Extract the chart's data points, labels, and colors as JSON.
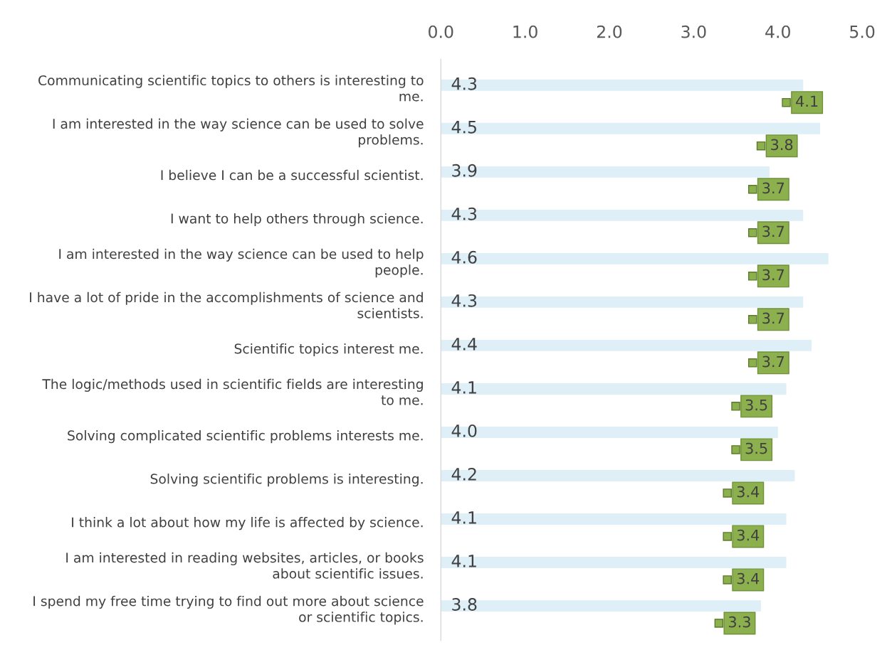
{
  "chart_data": {
    "type": "bar",
    "orientation": "horizontal",
    "categories": [
      "Communicating scientific topics to others is interesting to me.",
      "I am interested in the way science can be used to solve problems.",
      "I believe I can be a successful scientist.",
      "I want to help others through science.",
      "I am interested in the way science can be used to help people.",
      "I have a lot of pride in the accomplishments of science and scientists.",
      "Scientific topics interest me.",
      "The logic/methods used in scientific fields are interesting to me.",
      "Solving complicated scientific problems interests me.",
      "Solving scientific problems is interesting.",
      "I think a lot about how my life is affected by science.",
      "I am interested in reading websites, articles, or books about scientific issues.",
      "I spend my free time trying to find out more about science or scientific topics."
    ],
    "series": [
      {
        "color": "#deeff8",
        "values": [
          4.3,
          4.5,
          3.9,
          4.3,
          4.6,
          4.3,
          4.4,
          4.1,
          4.0,
          4.2,
          4.1,
          4.1,
          3.8
        ],
        "value_labels": [
          "4.3",
          "4.5",
          "3.9",
          "4.3",
          "4.6",
          "4.3",
          "4.4",
          "4.1",
          "4.0",
          "4.2",
          "4.1",
          "4.1",
          "3.8"
        ]
      },
      {
        "type": "scatter",
        "color": "#8db04f",
        "values": [
          4.1,
          3.8,
          3.7,
          3.7,
          3.7,
          3.7,
          3.7,
          3.5,
          3.5,
          3.4,
          3.4,
          3.4,
          3.3
        ]
      }
    ],
    "xlim": [
      0,
      5
    ],
    "xticks": [
      {
        "value": 0,
        "label": "0.0"
      },
      {
        "value": 1,
        "label": "1.0"
      },
      {
        "value": 2,
        "label": "2.0"
      },
      {
        "value": 3,
        "label": "3.0"
      },
      {
        "value": 4,
        "label": "4.0"
      },
      {
        "value": 5,
        "label": "5.0"
      }
    ],
    "data_labels": true,
    "grid": false,
    "legend": false,
    "marker": "square"
  }
}
